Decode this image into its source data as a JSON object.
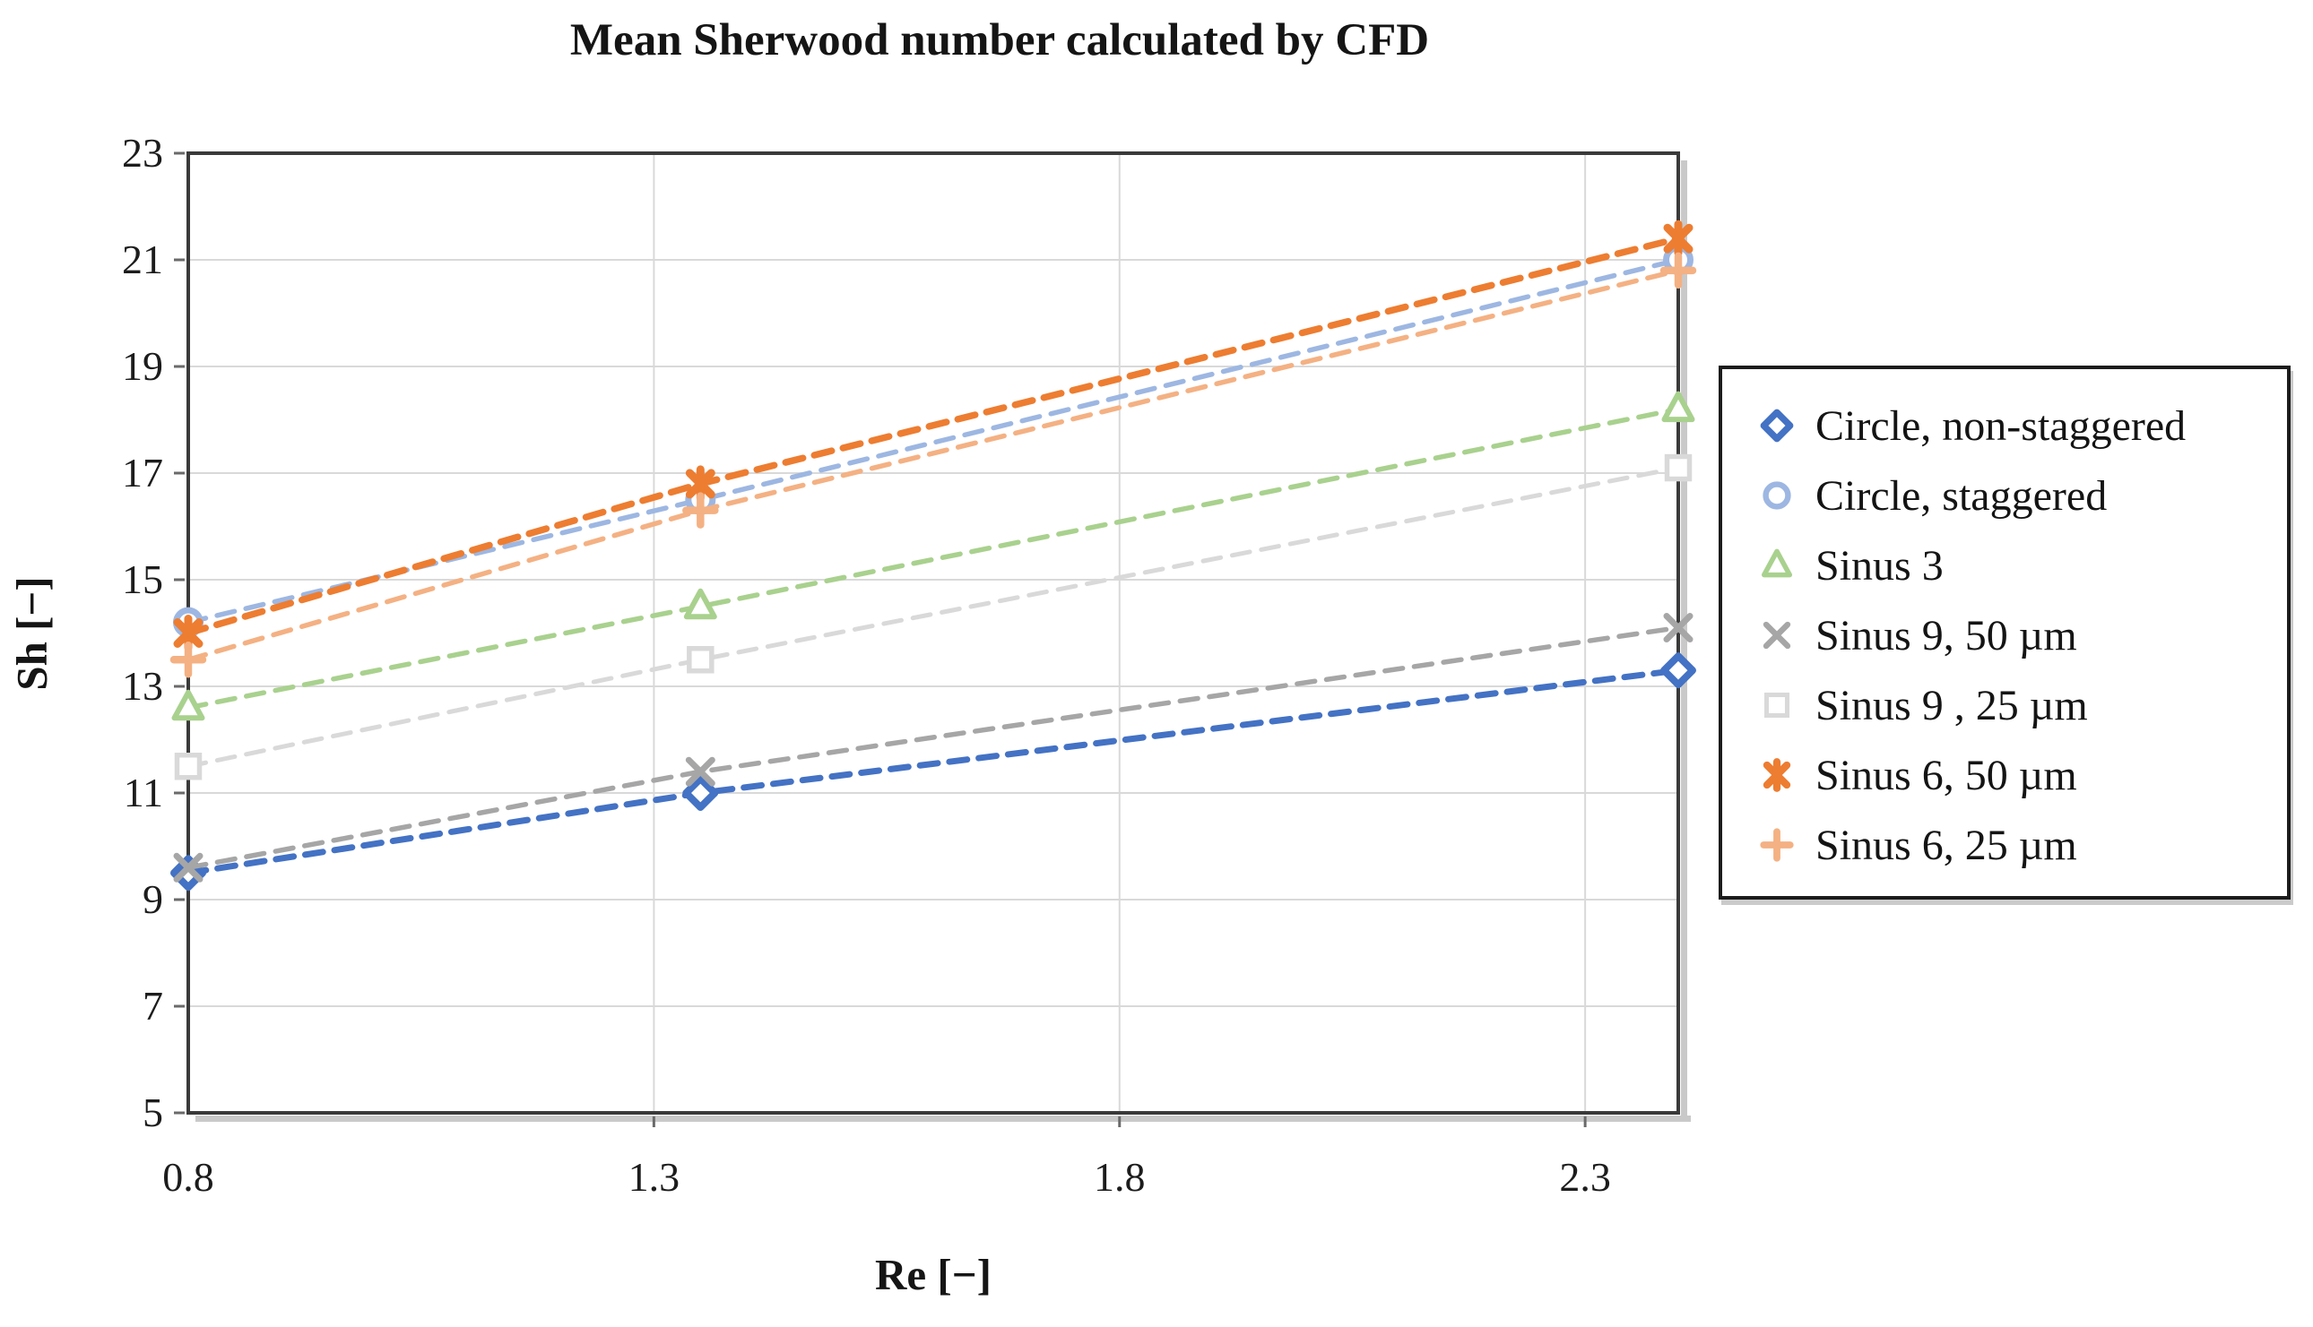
{
  "chart_data": {
    "type": "scatter",
    "title": "Mean Sherwood number calculated by CFD",
    "xlabel": "Re [−]",
    "ylabel": "Sh [−]",
    "xlim": [
      0.8,
      2.4
    ],
    "ylim": [
      5,
      23
    ],
    "x_ticks": [
      0.8,
      1.3,
      1.8,
      2.3
    ],
    "x_tick_labels": [
      "0.8",
      "1.3",
      "1.8",
      "2.3"
    ],
    "y_ticks": [
      5,
      7,
      9,
      11,
      13,
      15,
      17,
      19,
      21,
      23
    ],
    "y_tick_labels": [
      "5",
      "7",
      "9",
      "11",
      "13",
      "15",
      "17",
      "19",
      "21",
      "23"
    ],
    "grid": true,
    "legend_position": "right",
    "line_style": "dashed",
    "x": [
      0.8,
      1.35,
      2.4
    ],
    "series": [
      {
        "name": "Circle, non-staggered",
        "marker": "diamond",
        "color": "#4472C4",
        "line_width": 7,
        "values": [
          9.5,
          11.0,
          13.3
        ]
      },
      {
        "name": "Circle, staggered",
        "marker": "circle",
        "color": "#9DB7E2",
        "line_width": 5.5,
        "values": [
          14.2,
          16.5,
          21.0
        ]
      },
      {
        "name": "Sinus 3",
        "marker": "triangle",
        "color": "#A9D18E",
        "line_width": 5.5,
        "values": [
          12.6,
          14.5,
          18.2
        ]
      },
      {
        "name": "Sinus 9, 50 µm",
        "marker": "x",
        "color": "#A6A6A6",
        "line_width": 5.5,
        "values": [
          9.6,
          11.4,
          14.1
        ]
      },
      {
        "name": "Sinus 9 , 25 µm",
        "marker": "square",
        "color": "#D9D9D9",
        "line_width": 5,
        "values": [
          11.5,
          13.5,
          17.1
        ]
      },
      {
        "name": "Sinus 6, 50 µm",
        "marker": "star",
        "color": "#ED7D31",
        "line_width": 7.5,
        "values": [
          14.0,
          16.8,
          21.4
        ]
      },
      {
        "name": "Sinus 6, 25 µm",
        "marker": "plus",
        "color": "#F4B183",
        "line_width": 5.5,
        "values": [
          13.5,
          16.3,
          20.8
        ]
      }
    ],
    "colors": {
      "grid": "#D9D9D9",
      "plot_border": "#3a3a3a",
      "tick": "#6a6a6a",
      "text": "#1a1a1a"
    }
  }
}
